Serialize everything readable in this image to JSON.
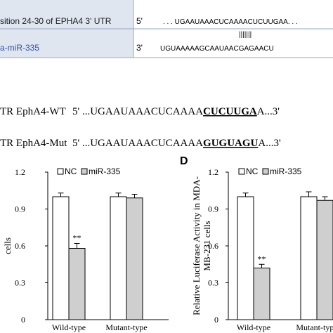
{
  "alignment": {
    "utr_label": "sition 24-30 of EPHA4 3' UTR",
    "utr_end": "5'",
    "utr_seq": ". . . UGAAUAAACUCAAAACUCUUGAA. . .",
    "pairing": "|||||||",
    "mir_label": "a-miR-335",
    "mir_end": "3'",
    "mir_seq": "UGUAAAAAGCAAUAACGAGAACU"
  },
  "constructs": [
    {
      "name": "TR EphA4-WT",
      "prefix": "5' ...UGAAUAAACUCAAAA",
      "site": "CUCUUGA",
      "suffix": "A...3'"
    },
    {
      "name": "TR EphA4-Mut",
      "prefix": "5' ...UGAAUAAACUCAAAA",
      "site": "GUGUAGU",
      "suffix": "A...3'"
    }
  ],
  "chart_data": [
    {
      "type": "bar",
      "y_label": [
        "cells"
      ],
      "categories": [
        "Wild-type",
        "Mutant-type"
      ],
      "series": [
        {
          "name": "NC",
          "color": "#ffffff",
          "values": [
            1.0,
            1.0
          ],
          "errors": [
            0.03,
            0.03
          ]
        },
        {
          "name": "miR-335",
          "color": "#cfcfcf",
          "values": [
            0.58,
            0.99
          ],
          "errors": [
            0.04,
            0.03
          ],
          "marks": [
            "**",
            null
          ]
        }
      ],
      "ylim": [
        0,
        1.2
      ],
      "yticks": [
        {
          "value": 0,
          "label": "0"
        },
        0.3,
        0.6,
        0.9,
        1.2
      ]
    },
    {
      "type": "bar",
      "panel_label": "D",
      "y_label": [
        "Relative Luciferase Activity in MDA-",
        "MB-231 cells"
      ],
      "categories": [
        "Wild-type",
        "Mutant-type"
      ],
      "series": [
        {
          "name": "NC",
          "color": "#ffffff",
          "values": [
            1.0,
            1.0
          ],
          "errors": [
            0.03,
            0.04
          ]
        },
        {
          "name": "miR-335",
          "color": "#cfcfcf",
          "values": [
            0.42,
            0.97
          ],
          "errors": [
            0.03,
            0.03
          ],
          "marks": [
            "**",
            null
          ]
        }
      ],
      "ylim": [
        0,
        1.2
      ],
      "yticks": [
        {
          "value": 0,
          "label": "0"
        },
        0.3,
        0.6,
        0.9,
        1.2
      ]
    }
  ]
}
